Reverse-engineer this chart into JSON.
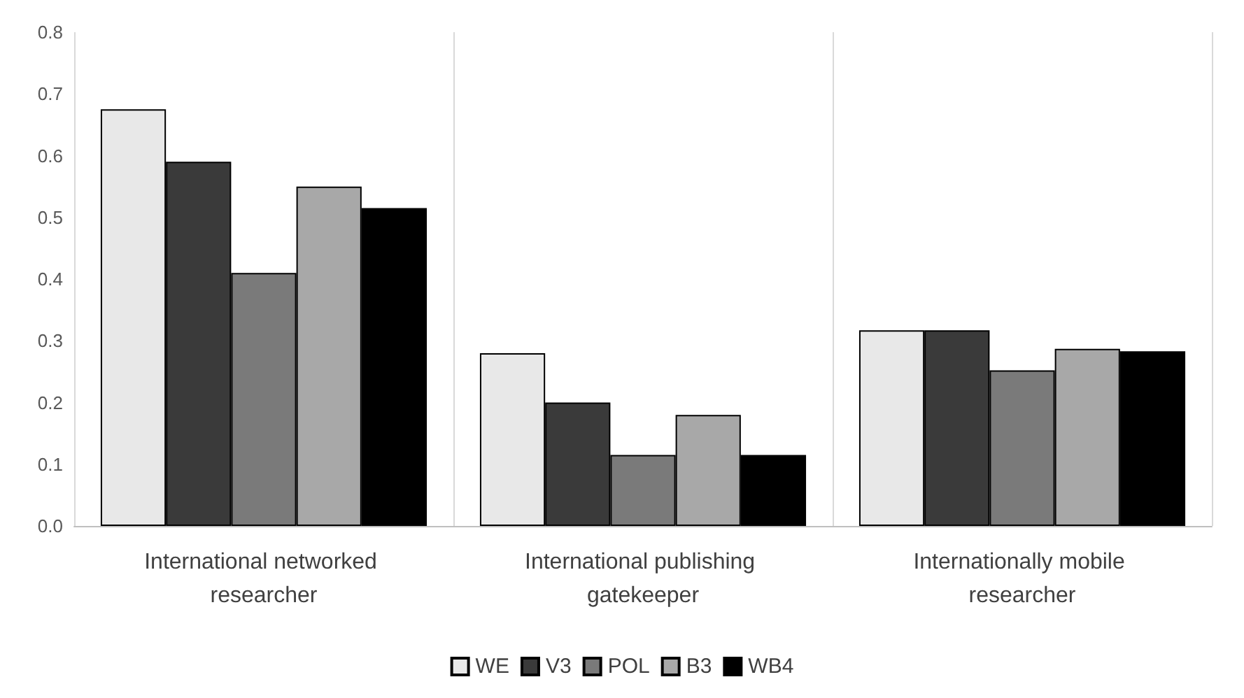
{
  "chart_data": {
    "type": "bar",
    "categories": [
      "International networked researcher",
      "International publishing gatekeeper",
      "Internationally mobile researcher"
    ],
    "series": [
      {
        "name": "WE",
        "color": "#e8e8e8",
        "values": [
          0.675,
          0.28,
          0.317
        ]
      },
      {
        "name": "V3",
        "color": "#3a3a3a",
        "values": [
          0.59,
          0.2,
          0.317
        ]
      },
      {
        "name": "POL",
        "color": "#7a7a7a",
        "values": [
          0.41,
          0.115,
          0.252
        ]
      },
      {
        "name": "B3",
        "color": "#a8a8a8",
        "values": [
          0.55,
          0.18,
          0.287
        ]
      },
      {
        "name": "WB4",
        "color": "#000000",
        "values": [
          0.515,
          0.115,
          0.283
        ]
      }
    ],
    "ylim": [
      0,
      0.8
    ],
    "yticks": [
      {
        "value": 0,
        "label": "0.0"
      },
      0.1,
      0.2,
      0.3,
      0.4,
      0.5,
      0.6,
      0.7,
      0.8
    ],
    "grid": "x",
    "legend": "bottom"
  }
}
